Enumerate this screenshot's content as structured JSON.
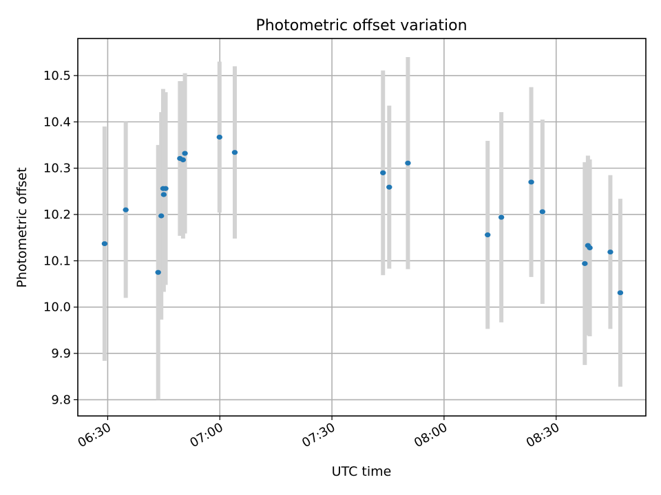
{
  "chart_data": {
    "type": "scatter",
    "title": "Photometric offset variation",
    "xlabel": "UTC time",
    "ylabel": "Photometric offset",
    "x_unit": "time",
    "xlim": [
      "06:22",
      "08:54"
    ],
    "ylim": [
      9.765,
      10.58
    ],
    "x_ticks": [
      "06:30",
      "07:00",
      "07:30",
      "08:00",
      "08:30"
    ],
    "y_ticks": [
      9.8,
      9.9,
      10.0,
      10.1,
      10.2,
      10.3,
      10.4,
      10.5
    ],
    "y_tick_labels": [
      "9.8",
      "9.9",
      "10.0",
      "10.1",
      "10.2",
      "10.3",
      "10.4",
      "10.5"
    ],
    "grid": true,
    "colors": {
      "point": "#1f77b4",
      "errorbar": "#d3d3d3",
      "grid": "#b0b0b0"
    },
    "series": [
      {
        "points": [
          {
            "x": "06:29:10",
            "y": 10.137,
            "err": 0.253
          },
          {
            "x": "06:34:50",
            "y": 10.21,
            "err": 0.19
          },
          {
            "x": "06:43:30",
            "y": 10.075,
            "err": 0.275
          },
          {
            "x": "06:44:20",
            "y": 10.197,
            "err": 0.224
          },
          {
            "x": "06:44:50",
            "y": 10.256,
            "err": 0.215
          },
          {
            "x": "06:45:00",
            "y": 10.243,
            "err": 0.21
          },
          {
            "x": "06:45:30",
            "y": 10.256,
            "err": 0.208
          },
          {
            "x": "06:49:20",
            "y": 10.321,
            "err": 0.167
          },
          {
            "x": "06:50:10",
            "y": 10.318,
            "err": 0.17
          },
          {
            "x": "06:50:40",
            "y": 10.332,
            "err": 0.173
          },
          {
            "x": "06:59:55",
            "y": 10.367,
            "err": 0.163
          },
          {
            "x": "07:04:00",
            "y": 10.334,
            "err": 0.186
          },
          {
            "x": "07:43:40",
            "y": 10.29,
            "err": 0.221
          },
          {
            "x": "07:45:20",
            "y": 10.259,
            "err": 0.176
          },
          {
            "x": "07:50:20",
            "y": 10.311,
            "err": 0.229
          },
          {
            "x": "08:11:40",
            "y": 10.156,
            "err": 0.203
          },
          {
            "x": "08:15:20",
            "y": 10.194,
            "err": 0.227
          },
          {
            "x": "08:23:20",
            "y": 10.27,
            "err": 0.205
          },
          {
            "x": "08:26:20",
            "y": 10.206,
            "err": 0.199
          },
          {
            "x": "08:37:40",
            "y": 10.094,
            "err": 0.219
          },
          {
            "x": "08:38:30",
            "y": 10.133,
            "err": 0.194
          },
          {
            "x": "08:39:00",
            "y": 10.128,
            "err": 0.191
          },
          {
            "x": "08:44:30",
            "y": 10.119,
            "err": 0.166
          },
          {
            "x": "08:47:10",
            "y": 10.031,
            "err": 0.203
          }
        ]
      }
    ]
  }
}
